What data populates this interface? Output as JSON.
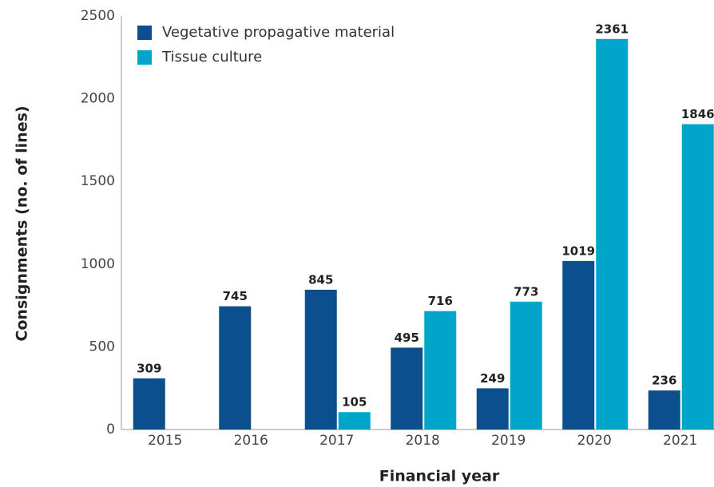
{
  "chart_data": {
    "type": "bar",
    "x_label": "Financial year",
    "y_label": "Consignments (no. of lines)",
    "categories": [
      "2015",
      "2016",
      "2017",
      "2018",
      "2019",
      "2020",
      "2021"
    ],
    "series": [
      {
        "name": "Vegetative propagative material",
        "color": "#0c4f8e",
        "values": [
          309,
          745,
          845,
          495,
          249,
          1019,
          236
        ]
      },
      {
        "name": "Tissue culture",
        "color": "#00a6c9",
        "values": [
          null,
          null,
          105,
          716,
          773,
          2361,
          1846
        ]
      }
    ],
    "ylim": [
      0,
      2500
    ],
    "yticks": [
      0,
      500,
      1000,
      1500,
      2000,
      2500
    ],
    "grid": false,
    "legend": "top-left"
  }
}
